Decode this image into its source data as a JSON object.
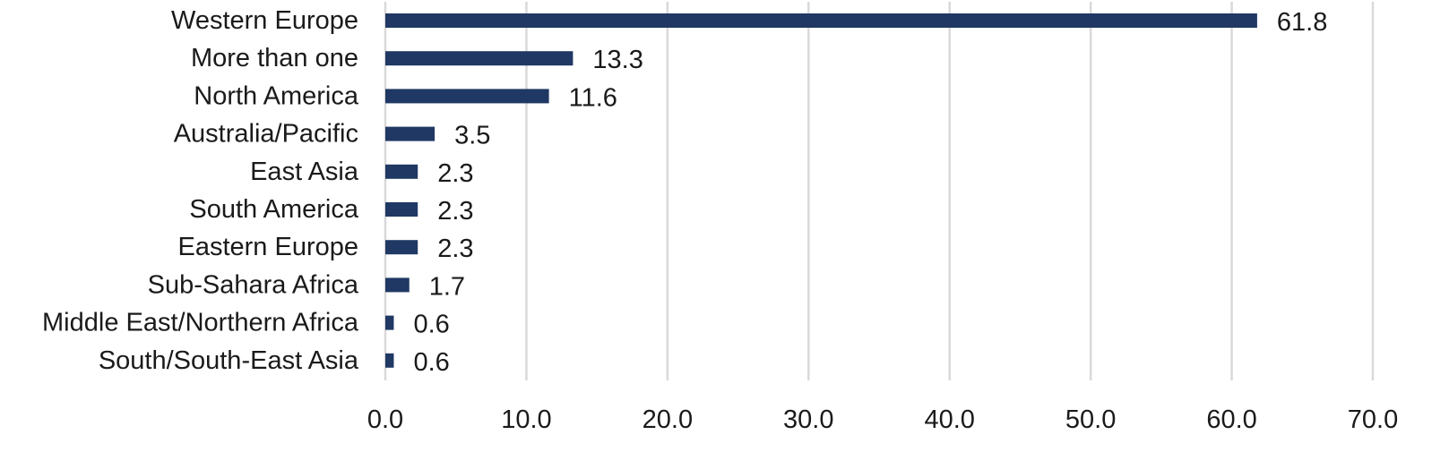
{
  "chart_data": {
    "type": "bar",
    "orientation": "horizontal",
    "categories": [
      "Western Europe",
      "More than one",
      "North America",
      "Australia/Pacific",
      "East Asia",
      "South America",
      "Eastern Europe",
      "Sub-Sahara Africa",
      "Middle East/Northern Africa",
      "South/South-East Asia"
    ],
    "values": [
      61.8,
      13.3,
      11.6,
      3.5,
      2.3,
      2.3,
      2.3,
      1.7,
      0.6,
      0.6
    ],
    "value_labels": [
      "61.8",
      "13.3",
      "11.6",
      "3.5",
      "2.3",
      "2.3",
      "2.3",
      "1.7",
      "0.6",
      "0.6"
    ],
    "xlim": [
      0,
      70
    ],
    "x_ticks": [
      "0.0",
      "10.0",
      "20.0",
      "30.0",
      "40.0",
      "50.0",
      "60.0",
      "70.0"
    ],
    "title": "",
    "xlabel": "",
    "ylabel": "",
    "grid": "vertical",
    "legend": "none",
    "bar_color": "#203864",
    "grid_color": "#d9d9d9"
  }
}
